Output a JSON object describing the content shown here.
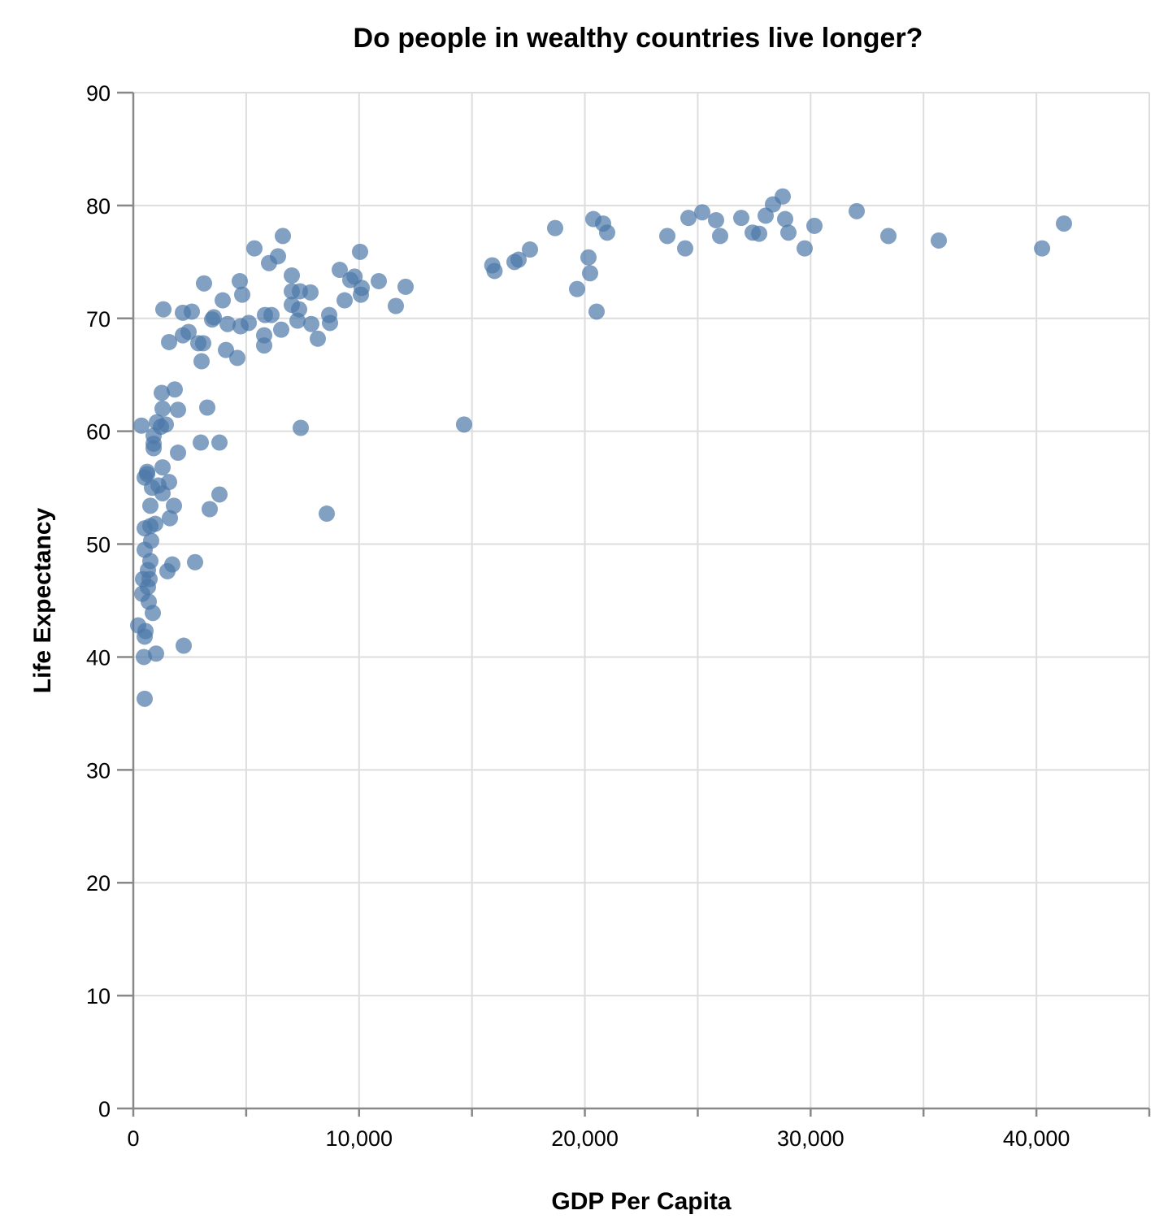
{
  "chart_data": {
    "type": "scatter",
    "title": "Do people in wealthy countries live longer?",
    "xlabel": "GDP Per Capita",
    "ylabel": "Life Expectancy",
    "xlim": [
      0,
      45000
    ],
    "ylim": [
      0,
      90
    ],
    "xticks": [
      0,
      10000,
      20000,
      30000,
      40000
    ],
    "xtick_labels": [
      "0",
      "10,000",
      "20,000",
      "30,000",
      "40,000"
    ],
    "yticks": [
      0,
      10,
      20,
      30,
      40,
      50,
      60,
      70,
      80,
      90
    ],
    "ytick_labels": [
      "0",
      "10",
      "20",
      "30",
      "40",
      "50",
      "60",
      "70",
      "80",
      "90"
    ],
    "grid": true,
    "color": "#4c78a8",
    "points": [
      [
        41220,
        78.4
      ],
      [
        40250,
        76.2
      ],
      [
        35676,
        76.9
      ],
      [
        33444,
        77.3
      ],
      [
        32040,
        79.5
      ],
      [
        30168,
        78.2
      ],
      [
        29736,
        76.2
      ],
      [
        29016,
        77.6
      ],
      [
        28872,
        78.8
      ],
      [
        28764,
        80.8
      ],
      [
        28332,
        80.1
      ],
      [
        28008,
        79.1
      ],
      [
        27720,
        77.5
      ],
      [
        27432,
        77.6
      ],
      [
        26928,
        78.9
      ],
      [
        25992,
        77.3
      ],
      [
        25812,
        78.7
      ],
      [
        25200,
        79.4
      ],
      [
        24588,
        78.9
      ],
      [
        24444,
        76.2
      ],
      [
        23652,
        77.3
      ],
      [
        20988,
        77.6
      ],
      [
        20808,
        78.4
      ],
      [
        20376,
        78.8
      ],
      [
        20520,
        70.6
      ],
      [
        20232,
        74.0
      ],
      [
        20160,
        75.4
      ],
      [
        19656,
        72.6
      ],
      [
        18684,
        78.0
      ],
      [
        17568,
        76.1
      ],
      [
        17064,
        75.2
      ],
      [
        16884,
        75.0
      ],
      [
        16000,
        74.2
      ],
      [
        15900,
        74.7
      ],
      [
        14650,
        60.6
      ],
      [
        12060,
        72.8
      ],
      [
        11628,
        71.1
      ],
      [
        10872,
        73.3
      ],
      [
        10044,
        75.9
      ],
      [
        10080,
        72.1
      ],
      [
        10116,
        72.7
      ],
      [
        9800,
        73.7
      ],
      [
        9612,
        73.4
      ],
      [
        9144,
        74.3
      ],
      [
        9360,
        71.6
      ],
      [
        8676,
        70.3
      ],
      [
        8712,
        69.6
      ],
      [
        8568,
        52.7
      ],
      [
        8172,
        68.2
      ],
      [
        7884,
        69.5
      ],
      [
        7848,
        72.3
      ],
      [
        7380,
        72.4
      ],
      [
        7344,
        70.8
      ],
      [
        7272,
        69.8
      ],
      [
        7416,
        60.3
      ],
      [
        7020,
        73.8
      ],
      [
        7020,
        72.4
      ],
      [
        7020,
        71.2
      ],
      [
        6624,
        77.3
      ],
      [
        6408,
        75.5
      ],
      [
        6552,
        69.0
      ],
      [
        6012,
        74.9
      ],
      [
        6120,
        70.3
      ],
      [
        5832,
        70.3
      ],
      [
        5796,
        68.5
      ],
      [
        5796,
        67.6
      ],
      [
        5364,
        76.2
      ],
      [
        5112,
        69.6
      ],
      [
        4824,
        72.1
      ],
      [
        4716,
        73.3
      ],
      [
        4752,
        69.3
      ],
      [
        4608,
        66.5
      ],
      [
        4176,
        69.5
      ],
      [
        4104,
        67.2
      ],
      [
        3960,
        71.6
      ],
      [
        3816,
        54.4
      ],
      [
        3816,
        59.0
      ],
      [
        3564,
        70.1
      ],
      [
        3492,
        69.9
      ],
      [
        3384,
        53.1
      ],
      [
        3276,
        62.1
      ],
      [
        3132,
        73.1
      ],
      [
        3096,
        67.8
      ],
      [
        3024,
        66.2
      ],
      [
        2988,
        59.0
      ],
      [
        2880,
        67.8
      ],
      [
        2736,
        48.4
      ],
      [
        2592,
        70.6
      ],
      [
        2448,
        68.8
      ],
      [
        2196,
        70.5
      ],
      [
        2196,
        68.5
      ],
      [
        2232,
        41.0
      ],
      [
        1980,
        58.1
      ],
      [
        1980,
        61.9
      ],
      [
        1836,
        63.7
      ],
      [
        1800,
        53.4
      ],
      [
        1728,
        48.2
      ],
      [
        1620,
        52.3
      ],
      [
        1584,
        67.9
      ],
      [
        1584,
        55.5
      ],
      [
        1512,
        47.6
      ],
      [
        1332,
        70.8
      ],
      [
        1440,
        60.6
      ],
      [
        1296,
        62.0
      ],
      [
        1260,
        63.4
      ],
      [
        1296,
        56.8
      ],
      [
        1224,
        60.4
      ],
      [
        1296,
        54.5
      ],
      [
        1116,
        55.2
      ],
      [
        1044,
        60.8
      ],
      [
        1008,
        40.3
      ],
      [
        972,
        51.8
      ],
      [
        900,
        58.9
      ],
      [
        900,
        58.5
      ],
      [
        900,
        59.6
      ],
      [
        828,
        55.0
      ],
      [
        864,
        43.9
      ],
      [
        792,
        50.3
      ],
      [
        756,
        53.4
      ],
      [
        756,
        51.6
      ],
      [
        756,
        48.5
      ],
      [
        720,
        46.9
      ],
      [
        684,
        44.9
      ],
      [
        612,
        56.4
      ],
      [
        648,
        46.2
      ],
      [
        612,
        56.2
      ],
      [
        504,
        49.5
      ],
      [
        504,
        55.9
      ],
      [
        504,
        51.4
      ],
      [
        432,
        46.9
      ],
      [
        396,
        45.6
      ],
      [
        504,
        41.8
      ],
      [
        540,
        42.3
      ],
      [
        504,
        36.3
      ],
      [
        468,
        40.0
      ],
      [
        360,
        60.5
      ],
      [
        216,
        42.8
      ],
      [
        648,
        47.7
      ]
    ]
  }
}
